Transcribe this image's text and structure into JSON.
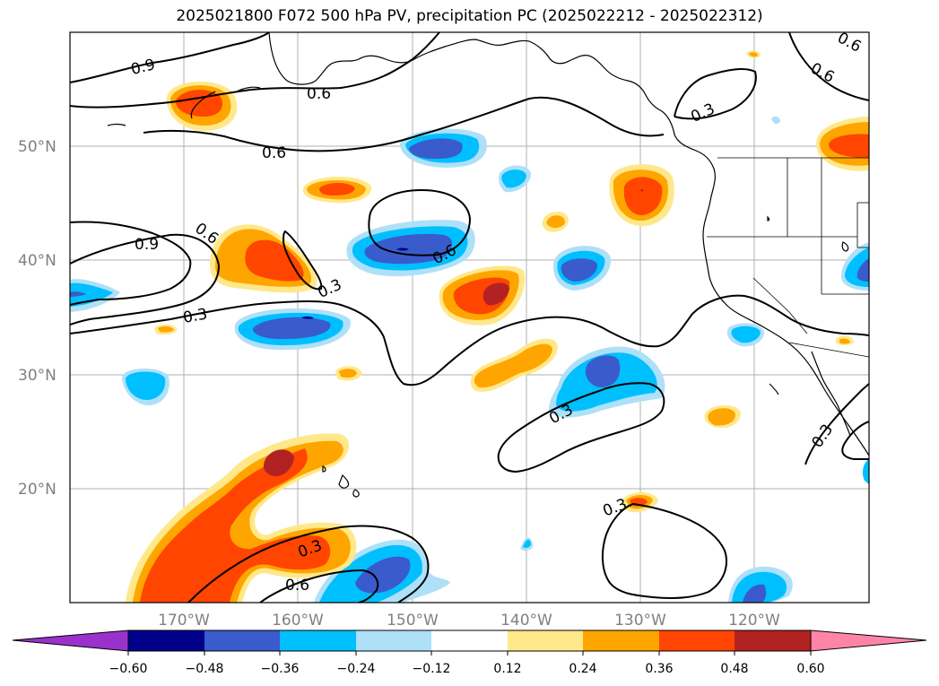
{
  "title": "2025021800 F072 500 hPa PV, precipitation PC (2025022212 - 2025022312)",
  "map": {
    "lat_labels": [
      "50°N",
      "40°N",
      "30°N",
      "20°N"
    ],
    "lon_labels": [
      "170°W",
      "160°W",
      "150°W",
      "140°W",
      "130°W",
      "120°W"
    ],
    "gridlines": true
  },
  "pv_contours": {
    "color": "#000000",
    "labels": [
      "0.9",
      "0.6",
      "0.6",
      "0.3",
      "0.6",
      "0.9",
      "0.6",
      "0.3",
      "0.3",
      "0.6",
      "0.3",
      "0.3",
      "0.3",
      "0.3",
      "0.6",
      "0.6"
    ]
  },
  "colorbar": {
    "ticks": [
      "−0.60",
      "−0.48",
      "−0.36",
      "−0.24",
      "−0.12",
      "0.12",
      "0.24",
      "0.36",
      "0.48",
      "0.60"
    ],
    "colors": {
      "under": "#9932cc",
      "lt_m060": "#9932cc",
      "m060_m048": "#00008b",
      "m048_m036": "#3a5bcc",
      "m036_m024": "#00bfff",
      "m024_m012": "#aee0f8",
      "m012_p012": "#ffffff",
      "p012_p024": "#ffe88a",
      "p024_p036": "#ffa500",
      "p036_p048": "#ff4500",
      "p048_p060": "#b22222",
      "over": "#ff85a8"
    }
  }
}
